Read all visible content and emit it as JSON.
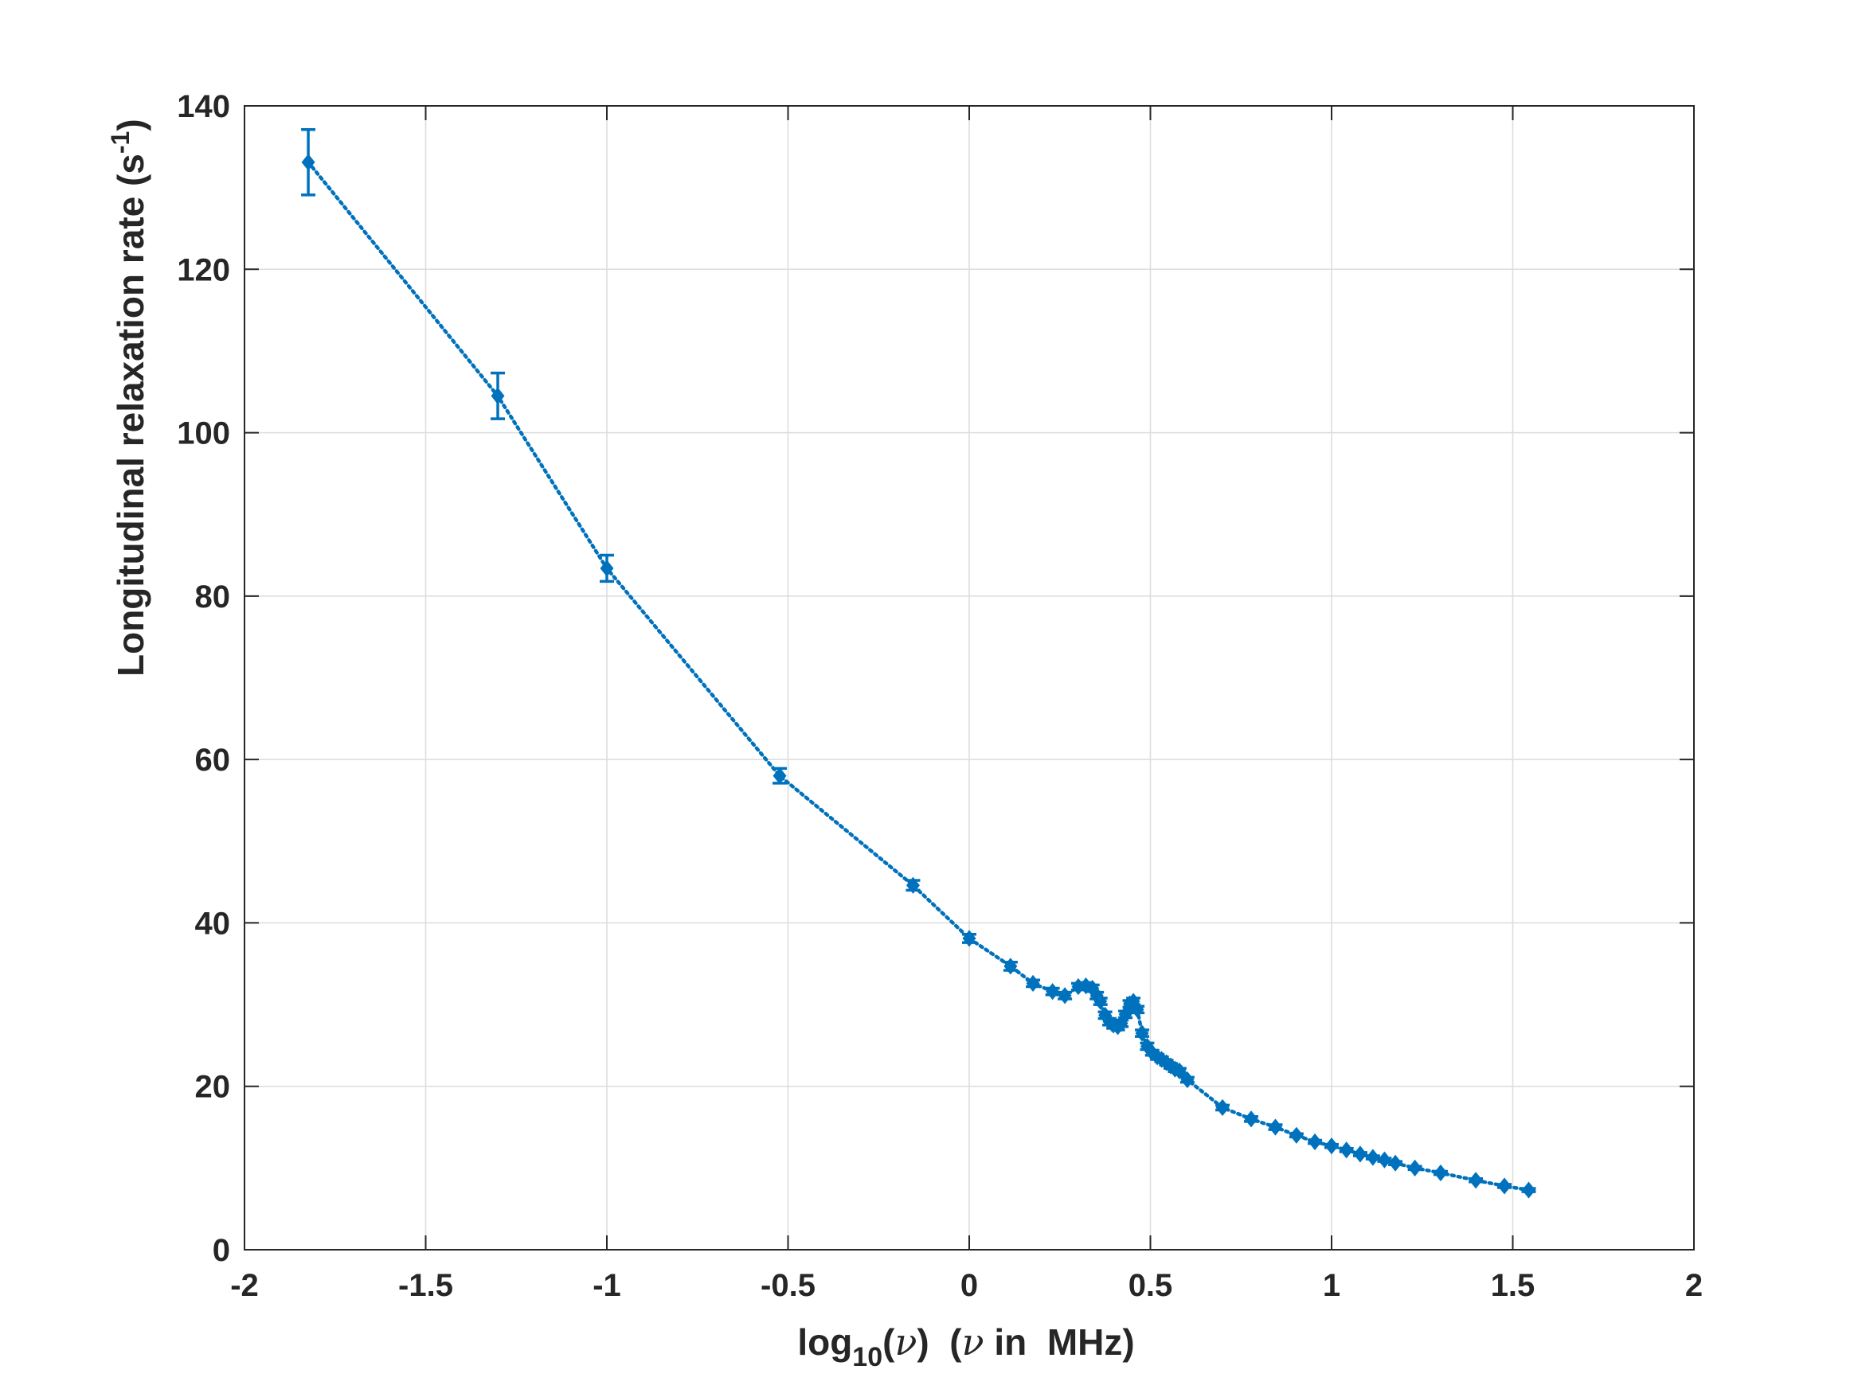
{
  "chart_data": {
    "type": "scatter",
    "xlabel": {
      "prefix": "log",
      "subscript": "10",
      "paren_open": "(",
      "nu1": "ν",
      "paren_close": ")",
      "spacer": "  (",
      "nu2": "ν",
      "suffix": " in  MHz)"
    },
    "ylabel": {
      "base": "Longitudinal relaxation rate (s",
      "superscript": "-1",
      "close": ")"
    },
    "xlim": [
      -2,
      2
    ],
    "ylim": [
      0,
      140
    ],
    "xticks": [
      -2,
      -1.5,
      -1,
      -0.5,
      0,
      0.5,
      1,
      1.5,
      2
    ],
    "xtick_labels": [
      "-2",
      "-1.5",
      "-1",
      "-0.5",
      "0",
      "0.5",
      "1",
      "1.5",
      "2"
    ],
    "yticks": [
      0,
      20,
      40,
      60,
      80,
      100,
      120,
      140
    ],
    "ytick_labels": [
      "0",
      "20",
      "40",
      "60",
      "80",
      "100",
      "120",
      "140"
    ],
    "grid": true,
    "series_color": "#0072BD",
    "marker": "diamond",
    "line_style": "dotted",
    "x": [
      -1.824,
      -1.301,
      -1.0,
      -0.523,
      -0.155,
      0.0,
      0.114,
      0.176,
      0.23,
      0.264,
      0.301,
      0.322,
      0.34,
      0.352,
      0.362,
      0.375,
      0.387,
      0.398,
      0.41,
      0.42,
      0.431,
      0.443,
      0.453,
      0.464,
      0.477,
      0.491,
      0.505,
      0.519,
      0.531,
      0.544,
      0.556,
      0.568,
      0.58,
      0.602,
      0.699,
      0.778,
      0.845,
      0.903,
      0.954,
      1.0,
      1.041,
      1.079,
      1.114,
      1.146,
      1.176,
      1.23,
      1.301,
      1.398,
      1.477,
      1.544
    ],
    "y": [
      133.1,
      104.5,
      83.4,
      58.0,
      44.6,
      38.1,
      34.7,
      32.6,
      31.6,
      31.1,
      32.2,
      32.3,
      32.0,
      31.1,
      30.4,
      28.7,
      27.9,
      27.5,
      27.3,
      27.7,
      28.8,
      30.1,
      30.4,
      29.4,
      26.5,
      24.9,
      24.1,
      23.6,
      23.3,
      22.9,
      22.5,
      22.1,
      21.9,
      20.8,
      17.4,
      16.0,
      15.0,
      14.0,
      13.2,
      12.7,
      12.2,
      11.7,
      11.3,
      11.0,
      10.6,
      10.0,
      9.4,
      8.5,
      7.8,
      7.3
    ],
    "err": [
      4.0,
      2.8,
      1.6,
      0.9,
      0.6,
      0.5,
      0.5,
      0.4,
      0.4,
      0.4,
      0.4,
      0.4,
      0.4,
      0.4,
      0.4,
      0.4,
      0.4,
      0.4,
      0.4,
      0.4,
      0.4,
      0.4,
      0.4,
      0.4,
      0.4,
      0.4,
      0.3,
      0.3,
      0.3,
      0.3,
      0.3,
      0.3,
      0.3,
      0.3,
      0.3,
      0.3,
      0.3,
      0.2,
      0.2,
      0.2,
      0.2,
      0.2,
      0.2,
      0.2,
      0.2,
      0.2,
      0.2,
      0.2,
      0.2,
      0.2
    ]
  }
}
